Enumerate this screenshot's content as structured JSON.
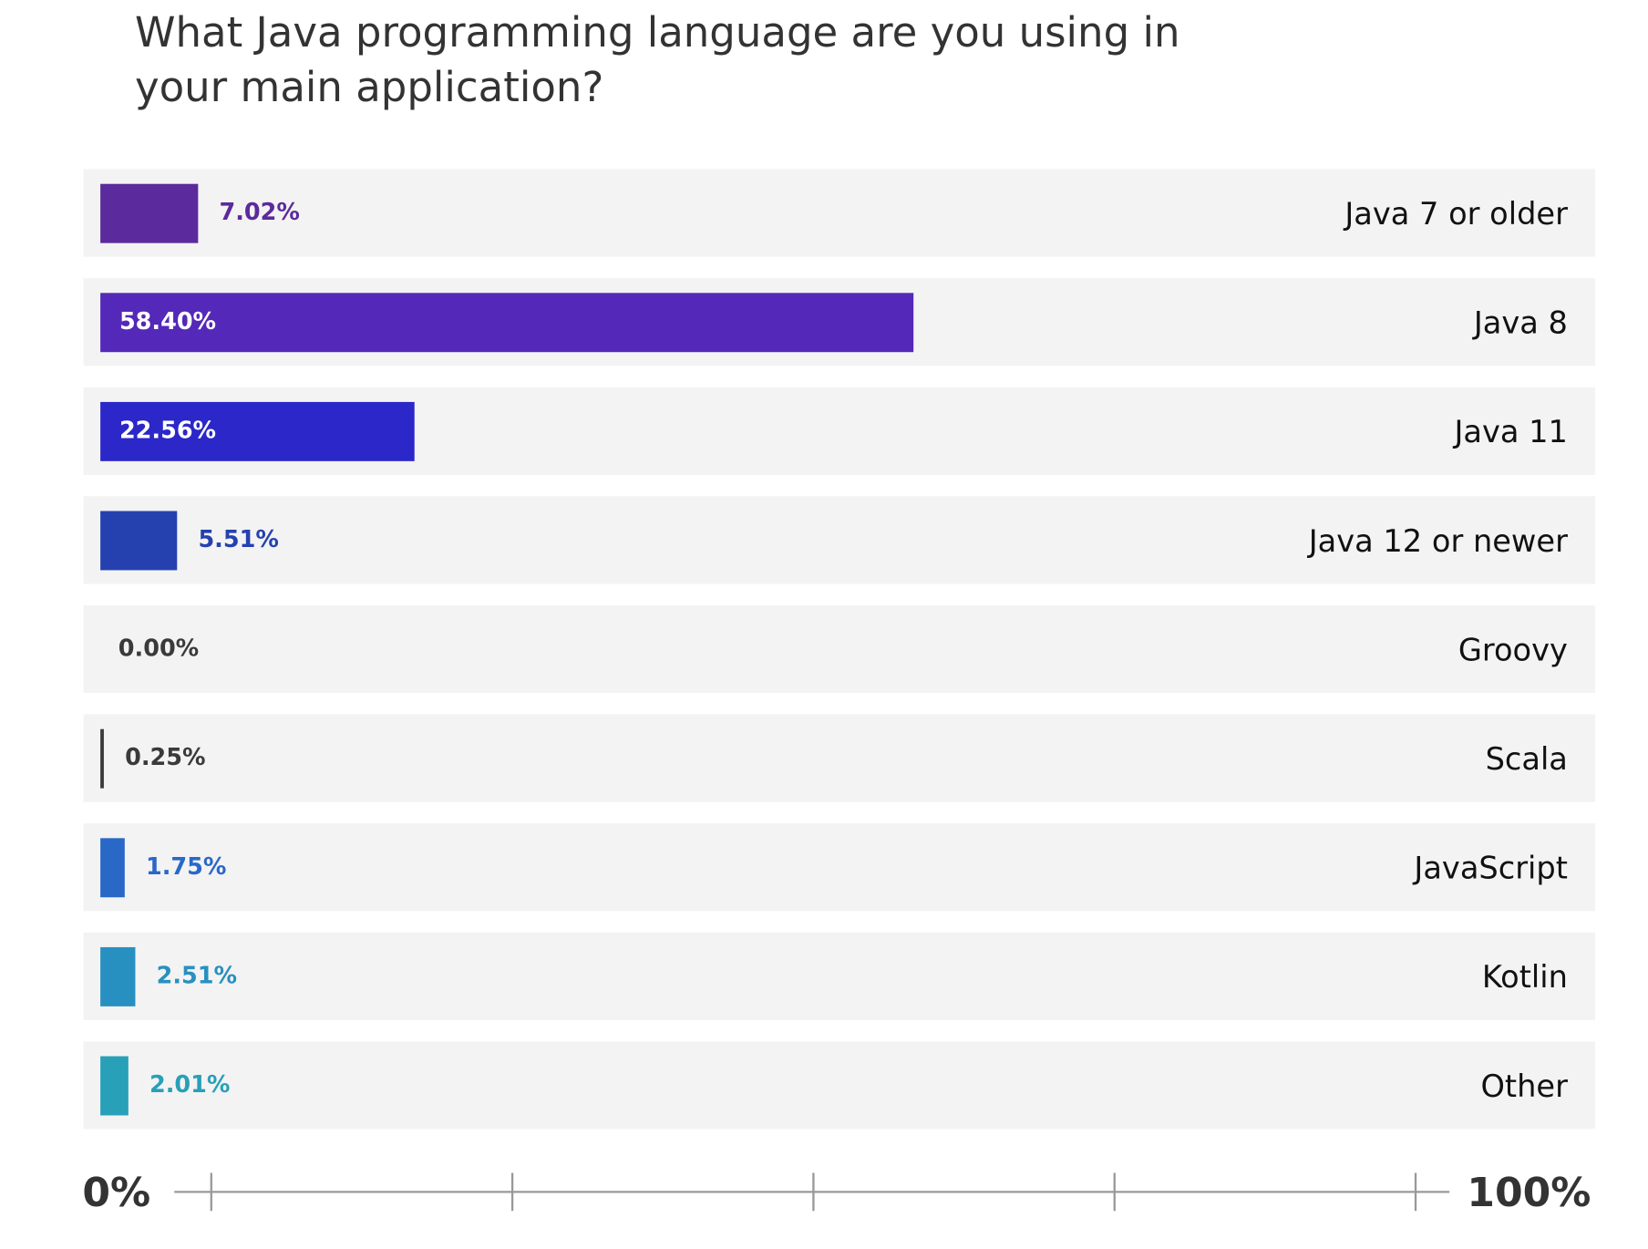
{
  "chart_data": {
    "type": "hbar",
    "title": "What Java programming language are you using in your main application?",
    "categories": [
      "Java 7 or older",
      "Java 8",
      "Java 11",
      "Java 12 or newer",
      "Groovy",
      "Scala",
      "JavaScript",
      "Kotlin",
      "Other"
    ],
    "values": [
      7.02,
      58.4,
      22.56,
      5.51,
      0.0,
      0.25,
      1.75,
      2.51,
      2.01
    ],
    "value_labels": [
      "7.02%",
      "58.40%",
      "22.56%",
      "5.51%",
      "0.00%",
      "0.25%",
      "1.75%",
      "2.51%",
      "2.01%"
    ],
    "colors": [
      "#5b2a9c",
      "#5428b8",
      "#2b27c8",
      "#2541b0",
      "#3a3a3a",
      "#3a3a3a",
      "#2a68c8",
      "#2890c0",
      "#27a0b8"
    ],
    "xlim": [
      0,
      100
    ],
    "xticks": [
      0,
      25,
      50,
      75,
      100
    ],
    "x_axis_labels": [
      "0%",
      "100%"
    ]
  }
}
